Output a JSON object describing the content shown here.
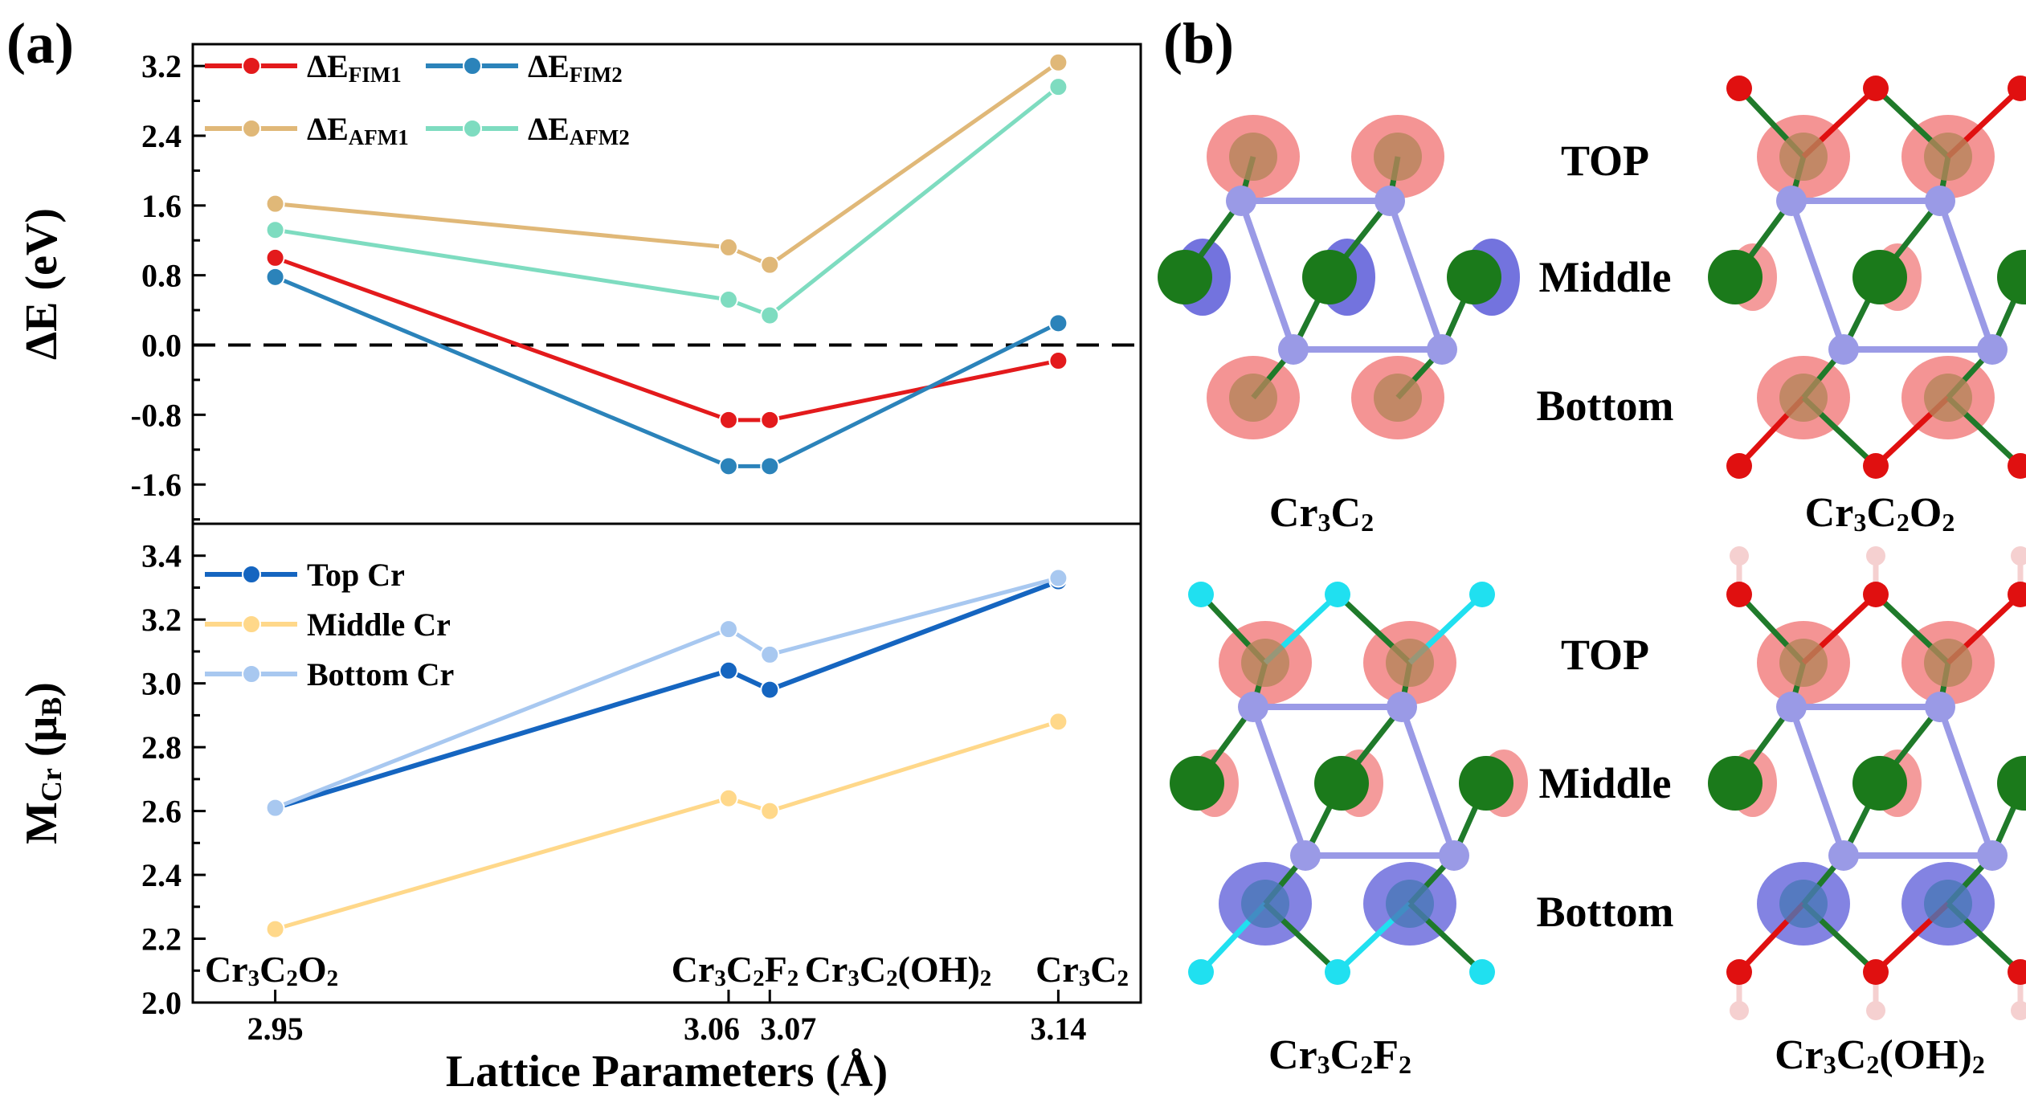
{
  "panel_labels": {
    "a": "(a)",
    "b": "(b)"
  },
  "shared_x": {
    "xlabel": "Lattice Parameters (Å)",
    "xlim": [
      2.93,
      3.16
    ],
    "tick_values": [
      2.95,
      3.06,
      3.07,
      3.14
    ],
    "tick_labels": [
      "2.95",
      "3.06",
      "3.07",
      "3.14"
    ],
    "material_labels": [
      {
        "x": 2.95,
        "base": "Cr",
        "parts": [
          [
            "3",
            "sub"
          ],
          [
            "C",
            ""
          ],
          [
            "2",
            "sub"
          ],
          [
            "O",
            ""
          ],
          [
            "2",
            "sub"
          ]
        ]
      },
      {
        "x": 3.06,
        "base": "Cr",
        "parts": [
          [
            "3",
            "sub"
          ],
          [
            "C",
            ""
          ],
          [
            "2",
            "sub"
          ],
          [
            "F",
            ""
          ],
          [
            "2",
            "sub"
          ]
        ]
      },
      {
        "x": 3.07,
        "base": "Cr",
        "parts": [
          [
            "3",
            "sub"
          ],
          [
            "C",
            ""
          ],
          [
            "2",
            "sub"
          ],
          [
            "(OH)",
            ""
          ],
          [
            "2",
            "sub"
          ]
        ]
      },
      {
        "x": 3.14,
        "base": "Cr",
        "parts": [
          [
            "3",
            "sub"
          ],
          [
            "C",
            ""
          ],
          [
            "2",
            "sub"
          ]
        ]
      }
    ]
  },
  "chart_data": [
    {
      "type": "line",
      "ylabel": "ΔE (eV)",
      "ylim": [
        -2.05,
        3.45
      ],
      "yticks": [
        -1.6,
        -0.8,
        0.0,
        0.8,
        1.6,
        2.4,
        3.2
      ],
      "yticks_labels": [
        "-1.6",
        "-0.8",
        "0.0",
        "0.8",
        "1.6",
        "2.4",
        "3.2"
      ],
      "reference_line": {
        "y": 0.0,
        "style": "dashed"
      },
      "x": [
        2.95,
        3.06,
        3.07,
        3.14
      ],
      "legend": "top-left, 2 columns",
      "series": [
        {
          "name": "ΔE",
          "sub": "FIM1",
          "color": "#e31a1c",
          "values": [
            1.0,
            -0.86,
            -0.86,
            -0.18
          ]
        },
        {
          "name": "ΔE",
          "sub": "FIM2",
          "color": "#2b83ba",
          "values": [
            0.78,
            -1.39,
            -1.39,
            0.25
          ]
        },
        {
          "name": "ΔE",
          "sub": "AFM1",
          "color": "#e0b878",
          "values": [
            1.62,
            1.12,
            0.92,
            3.24
          ]
        },
        {
          "name": "ΔE",
          "sub": "AFM2",
          "color": "#7edcc0",
          "values": [
            1.32,
            0.52,
            0.34,
            2.96
          ]
        }
      ]
    },
    {
      "type": "line",
      "ylabel": "M",
      "ylabel_sub": "Cr",
      "ylabel_unit": "(μ",
      "ylabel_unit_sub": "B",
      "ylabel_close": ")",
      "ylim": [
        2.0,
        3.5
      ],
      "yticks": [
        2.0,
        2.2,
        2.4,
        2.6,
        2.8,
        3.0,
        3.2,
        3.4
      ],
      "yticks_labels": [
        "2.0",
        "2.2",
        "2.4",
        "2.6",
        "2.8",
        "3.0",
        "3.2",
        "3.4"
      ],
      "x": [
        2.95,
        3.06,
        3.07,
        3.14
      ],
      "legend": "top-left",
      "series": [
        {
          "name": "Top Cr",
          "color": "#1565c0",
          "values": [
            2.61,
            3.04,
            2.98,
            3.32
          ]
        },
        {
          "name": "Middle Cr",
          "color": "#ffd88a",
          "values": [
            2.23,
            2.64,
            2.6,
            2.88
          ]
        },
        {
          "name": "Bottom Cr",
          "color": "#a8c8f0",
          "values": [
            2.61,
            3.17,
            3.09,
            3.33
          ]
        }
      ]
    }
  ],
  "structures": {
    "row_labels": [
      "TOP",
      "Middle",
      "Bottom"
    ],
    "captions": [
      {
        "base": "Cr",
        "parts": [
          [
            "3",
            "sub"
          ],
          [
            "C",
            ""
          ],
          [
            "2",
            "sub"
          ]
        ]
      },
      {
        "base": "Cr",
        "parts": [
          [
            "3",
            "sub"
          ],
          [
            "C",
            ""
          ],
          [
            "2",
            "sub"
          ],
          [
            "O",
            ""
          ],
          [
            "2",
            "sub"
          ]
        ]
      },
      {
        "base": "Cr",
        "parts": [
          [
            "3",
            "sub"
          ],
          [
            "C",
            ""
          ],
          [
            "2",
            "sub"
          ],
          [
            "F",
            ""
          ],
          [
            "2",
            "sub"
          ]
        ]
      },
      {
        "base": "Cr",
        "parts": [
          [
            "3",
            "sub"
          ],
          [
            "C",
            ""
          ],
          [
            "2",
            "sub"
          ],
          [
            "(OH)",
            ""
          ],
          [
            "2",
            "sub"
          ]
        ]
      }
    ],
    "colors": {
      "cr": "#1b7a1b",
      "carbon": "#9a9ae6",
      "bond_green": "#1f7a2a",
      "spin_up": "#f07070",
      "spin_down": "#5a5ad8",
      "oxygen": "#e01010",
      "fluorine": "#20e0f0",
      "hydrogen": "#f5d0d0"
    }
  }
}
